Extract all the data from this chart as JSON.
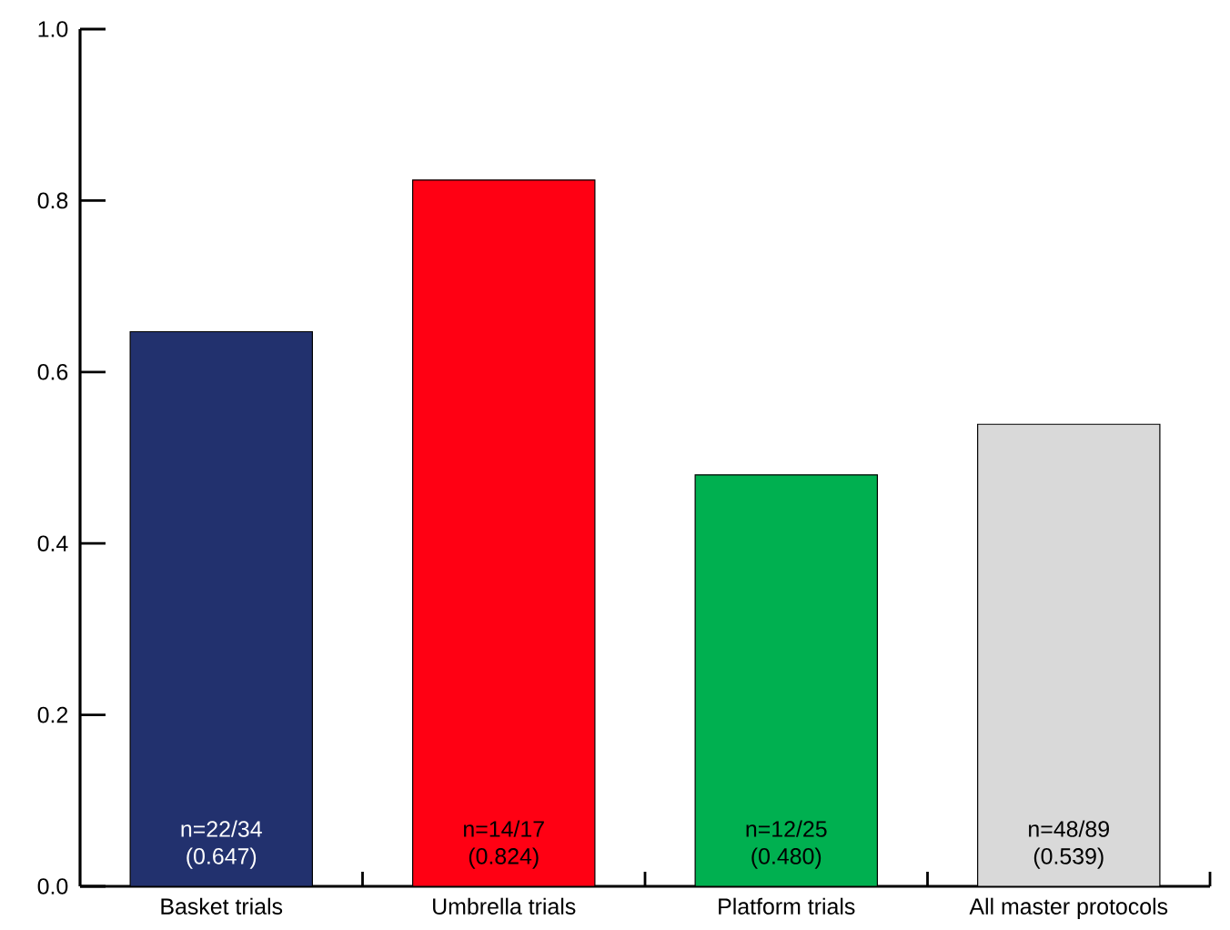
{
  "chart_data": {
    "type": "bar",
    "categories": [
      "Basket trials",
      "Umbrella trials",
      "Platform trials",
      "All master protocols"
    ],
    "values": [
      0.647,
      0.824,
      0.48,
      0.539
    ],
    "colors": [
      "#22316e",
      "#ff0013",
      "#00b050",
      "#d9d9d9"
    ],
    "value_labels": [
      "n=22/34 (0.647)",
      "n=14/17 (0.824)",
      "n=12/25 (0.480)",
      "n=48/89 (0.539)"
    ],
    "ylim": [
      0,
      1.0
    ],
    "yticks": [
      {
        "value": 0,
        "label": "0.0"
      },
      {
        "value": 0.2,
        "label": "0.2"
      },
      {
        "value": 0.4,
        "label": "0.4"
      },
      {
        "value": 0.6,
        "label": "0.6"
      },
      {
        "value": 0.8,
        "label": "0.8"
      },
      {
        "value": 1.0,
        "label": "1.0"
      }
    ],
    "grid": false
  }
}
